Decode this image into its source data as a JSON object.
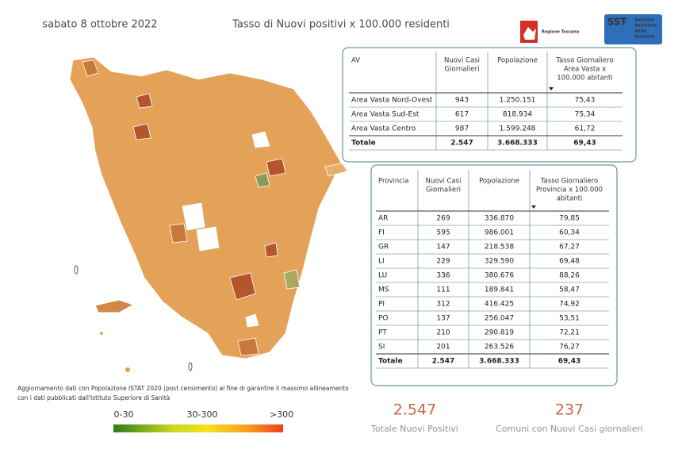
{
  "header": {
    "date": "sabato 8 ottobre 2022",
    "title": "Tasso di Nuovi positivi x 100.000 residenti",
    "region_logo": "Regione Toscana",
    "sst_logo": "SST",
    "sst_text": [
      "Servizio",
      "Sanitario",
      "della",
      "Toscana"
    ]
  },
  "area_table": {
    "columns": [
      [
        "AV"
      ],
      [
        "Nuovi Casi",
        "Giornalieri"
      ],
      [
        "Popolazione"
      ],
      [
        "Tasso Giornaliero",
        "Area Vasta x",
        "100.000 abitanti"
      ]
    ],
    "rows": [
      [
        "Area Vasta Nord-Ovest",
        "943",
        "1.250.151",
        "75,43"
      ],
      [
        "Area Vasta Sud-Est",
        "617",
        "818.934",
        "75,34"
      ],
      [
        "Area Vasta Centro",
        "987",
        "1.599.248",
        "61,72"
      ]
    ],
    "total": [
      "Totale",
      "2.547",
      "3.668.333",
      "69,43"
    ]
  },
  "province_table": {
    "columns": [
      [
        "Provincia"
      ],
      [
        "Nuovi Casi",
        "Giornalieri"
      ],
      [
        "Popolazione"
      ],
      [
        "Tasso Giornaliero",
        "Provincia x 100.000",
        "abitanti"
      ]
    ],
    "rows": [
      [
        "AR",
        "269",
        "336.870",
        "79,85"
      ],
      [
        "FI",
        "595",
        "986.001",
        "60,34"
      ],
      [
        "GR",
        "147",
        "218.538",
        "67,27"
      ],
      [
        "LI",
        "229",
        "329.590",
        "69,48"
      ],
      [
        "LU",
        "336",
        "380.676",
        "88,26"
      ],
      [
        "MS",
        "111",
        "189.841",
        "58,47"
      ],
      [
        "PI",
        "312",
        "416.425",
        "74,92"
      ],
      [
        "PO",
        "137",
        "256.047",
        "53,51"
      ],
      [
        "PT",
        "210",
        "290.819",
        "72,21"
      ],
      [
        "SI",
        "201",
        "263.526",
        "76,27"
      ]
    ],
    "total": [
      "Totale",
      "2.547",
      "3.668.333",
      "69,43"
    ]
  },
  "note": [
    "Aggiornamento dati con Popolazione ISTAT 2020 (post censimento) al fine di garantire il massimo allineamento",
    "con i dati pubblicati dall'Istituto Superiore di Sanità"
  ],
  "legend": [
    "0-30",
    "30-300",
    ">300"
  ],
  "kpis": [
    {
      "value": "2.547",
      "label": "Totale Nuovi Positivi"
    },
    {
      "value": "237",
      "label": "Comuni con Nuovi Casi giornalieri"
    }
  ]
}
